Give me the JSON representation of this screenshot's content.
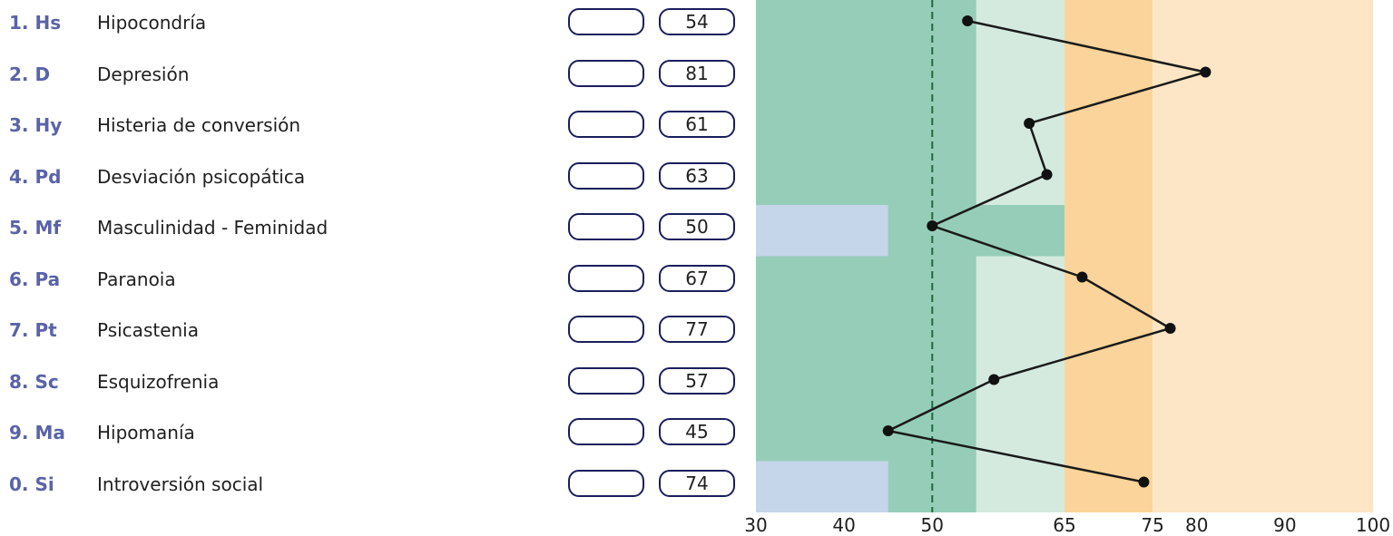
{
  "scales": [
    {
      "code": "1. Hs",
      "name": "Hipocondría",
      "raw": "",
      "t": "54"
    },
    {
      "code": "2. D",
      "name": "Depresión",
      "raw": "",
      "t": "81"
    },
    {
      "code": "3. Hy",
      "name": "Histeria de conversión",
      "raw": "",
      "t": "61"
    },
    {
      "code": "4. Pd",
      "name": "Desviación psicopática",
      "raw": "",
      "t": "63"
    },
    {
      "code": "5. Mf",
      "name": "Masculinidad - Feminidad",
      "raw": "",
      "t": "50"
    },
    {
      "code": "6. Pa",
      "name": "Paranoia",
      "raw": "",
      "t": "67"
    },
    {
      "code": "7. Pt",
      "name": "Psicastenia",
      "raw": "",
      "t": "77"
    },
    {
      "code": "8. Sc",
      "name": "Esquizofrenia",
      "raw": "",
      "t": "57"
    },
    {
      "code": "9. Ma",
      "name": "Hipomanía",
      "raw": "",
      "t": "45"
    },
    {
      "code": "0. Si",
      "name": "Introversión social",
      "raw": "",
      "t": "74"
    }
  ],
  "chart_data": {
    "type": "line",
    "orientation": "horizontal-profile",
    "categories": [
      "1. Hs",
      "2. D",
      "3. Hy",
      "4. Pd",
      "5. Mf",
      "6. Pa",
      "7. Pt",
      "8. Sc",
      "9. Ma",
      "0. Si"
    ],
    "values": [
      54,
      81,
      61,
      63,
      50,
      67,
      77,
      57,
      45,
      74
    ],
    "xlim": [
      30,
      100
    ],
    "x_ticks": [
      30,
      40,
      50,
      65,
      75,
      80,
      90,
      100
    ],
    "reference_line": 50,
    "bands": [
      {
        "from": 30,
        "to": 55,
        "color": "#96cdb9"
      },
      {
        "from": 55,
        "to": 65,
        "color": "#d4eadf"
      },
      {
        "from": 65,
        "to": 75,
        "color": "#fbd49b"
      },
      {
        "from": 75,
        "to": 100,
        "color": "#fde6c5"
      }
    ],
    "exceptions": [
      {
        "category": "5. Mf",
        "bands": [
          {
            "from": 30,
            "to": 45,
            "color": "#c5d5ea"
          },
          {
            "from": 45,
            "to": 65,
            "color": "#96cdb9"
          }
        ]
      },
      {
        "category": "0. Si",
        "bands": [
          {
            "from": 30,
            "to": 45,
            "color": "#c5d5ea"
          }
        ]
      }
    ],
    "colors": {
      "line": "#1a1a1a",
      "marker": "#111111",
      "reference": "#1f6b3a"
    }
  }
}
